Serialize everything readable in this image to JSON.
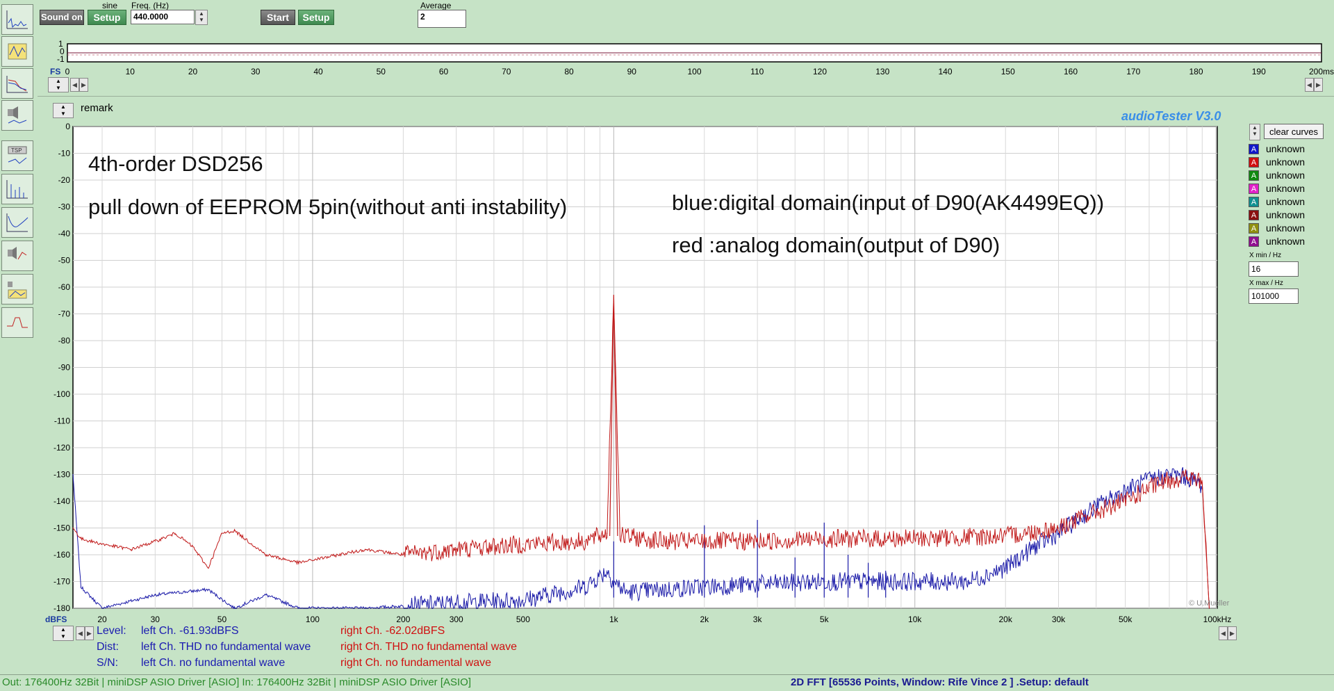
{
  "generator": {
    "waveform_label": "sine",
    "sound_button": "Sound on",
    "setup_button": "Setup",
    "freq_label": "Freq. (Hz)",
    "freq_value": "440.0000"
  },
  "analyzer": {
    "start_button": "Start",
    "setup_button": "Setup",
    "average_label": "Average",
    "average_value": "2"
  },
  "scope": {
    "y_ticks": [
      "1",
      "0",
      "-1"
    ],
    "fs_label": "FS",
    "x_ticks": [
      "0",
      "10",
      "20",
      "30",
      "40",
      "50",
      "60",
      "70",
      "80",
      "90",
      "100",
      "110",
      "120",
      "130",
      "140",
      "150",
      "160",
      "170",
      "180",
      "190",
      "200ms"
    ]
  },
  "remark_label": "remark",
  "brand_label": "audioTester  V3.0",
  "copyright": "© U.Mueller",
  "clear_curves_button": "clear curves",
  "legend": [
    {
      "letter": "A",
      "label": "unknown",
      "color": "#1018c8"
    },
    {
      "letter": "A",
      "label": "unknown",
      "color": "#d01010"
    },
    {
      "letter": "A",
      "label": "unknown",
      "color": "#108a10"
    },
    {
      "letter": "A",
      "label": "unknown",
      "color": "#e020c8"
    },
    {
      "letter": "A",
      "label": "unknown",
      "color": "#109090"
    },
    {
      "letter": "A",
      "label": "unknown",
      "color": "#8a1010"
    },
    {
      "letter": "A",
      "label": "unknown",
      "color": "#909010"
    },
    {
      "letter": "A",
      "label": "unknown",
      "color": "#901090"
    }
  ],
  "x_min_label": "X min / Hz",
  "x_min_value": "16",
  "x_max_label": "X max / Hz",
  "x_max_value": "101000",
  "annotations": {
    "line1": "4th-order DSD256",
    "line2": "pull down of EEPROM 5pin(without anti instability)",
    "line3": "blue:digital domain(input of D90(AK4499EQ))",
    "line4": "red :analog domain(output of D90)"
  },
  "results": {
    "level_label": "Level:",
    "level_left": "left Ch. -61.93dBFS",
    "level_right": "right Ch. -62.02dBFS",
    "dist_label": "Dist:",
    "dist_left": "left Ch. THD no fundamental wave",
    "dist_right": "right Ch. THD no fundamental wave",
    "sn_label": "S/N:",
    "sn_left": "left Ch.  no fundamental wave",
    "sn_right": "right Ch.  no fundamental wave"
  },
  "status": {
    "left_text": "Out: 176400Hz 32Bit  | miniDSP ASIO Driver [ASIO] In: 176400Hz 32Bit  | miniDSP ASIO Driver [ASIO]",
    "right_text": "2D FFT [65536 Points, Window: Rife Vince 2 ]  .Setup:  default"
  },
  "chart_data": {
    "type": "line",
    "title": "",
    "xlabel": "",
    "ylabel": "dBFS",
    "x_scale": "log",
    "xlim": [
      16,
      101000
    ],
    "ylim": [
      -180,
      0
    ],
    "y_ticks": [
      0,
      -10,
      -20,
      -30,
      -40,
      -50,
      -60,
      -70,
      -80,
      -90,
      -100,
      -110,
      -120,
      -130,
      -140,
      -150,
      -160,
      -170,
      -180
    ],
    "x_tick_labels": [
      {
        "v": 20,
        "t": "20"
      },
      {
        "v": 30,
        "t": "30"
      },
      {
        "v": 50,
        "t": "50"
      },
      {
        "v": 100,
        "t": "100"
      },
      {
        "v": 200,
        "t": "200"
      },
      {
        "v": 300,
        "t": "300"
      },
      {
        "v": 500,
        "t": "500"
      },
      {
        "v": 1000,
        "t": "1k"
      },
      {
        "v": 2000,
        "t": "2k"
      },
      {
        "v": 3000,
        "t": "3k"
      },
      {
        "v": 5000,
        "t": "5k"
      },
      {
        "v": 10000,
        "t": "10k"
      },
      {
        "v": 20000,
        "t": "20k"
      },
      {
        "v": 30000,
        "t": "30k"
      },
      {
        "v": 50000,
        "t": "50k"
      },
      {
        "v": 101000,
        "t": "100kHz"
      }
    ],
    "grid": true,
    "series": [
      {
        "color": "#1a1aa8",
        "points": [
          [
            16,
            -130
          ],
          [
            17,
            -172
          ],
          [
            20,
            -180
          ],
          [
            30,
            -175
          ],
          [
            45,
            -173
          ],
          [
            55,
            -180
          ],
          [
            70,
            -175
          ],
          [
            90,
            -180
          ],
          [
            150,
            -180
          ],
          [
            300,
            -178
          ],
          [
            500,
            -177
          ],
          [
            800,
            -172
          ],
          [
            950,
            -166
          ],
          [
            1000,
            -170
          ],
          [
            1100,
            -174
          ],
          [
            2000,
            -172
          ],
          [
            3000,
            -171
          ],
          [
            5000,
            -170
          ],
          [
            8000,
            -170
          ],
          [
            12000,
            -170
          ],
          [
            15000,
            -170
          ],
          [
            20000,
            -165
          ],
          [
            25000,
            -157
          ],
          [
            30000,
            -152
          ],
          [
            40000,
            -142
          ],
          [
            50000,
            -136
          ],
          [
            60000,
            -132
          ],
          [
            70000,
            -130
          ],
          [
            80000,
            -131
          ],
          [
            90000,
            -134
          ]
        ],
        "spikes": [
          [
            1000,
            -155
          ],
          [
            2000,
            -149
          ],
          [
            3000,
            -147
          ],
          [
            4000,
            -161
          ],
          [
            5000,
            -148
          ],
          [
            6000,
            -160
          ],
          [
            7000,
            -163
          ],
          [
            8000,
            -166
          ]
        ]
      },
      {
        "color": "#c01818",
        "points": [
          [
            16,
            -150
          ],
          [
            17,
            -154
          ],
          [
            20,
            -156
          ],
          [
            25,
            -158
          ],
          [
            30,
            -155
          ],
          [
            35,
            -152
          ],
          [
            40,
            -157
          ],
          [
            45,
            -165
          ],
          [
            50,
            -152
          ],
          [
            55,
            -151
          ],
          [
            70,
            -160
          ],
          [
            90,
            -163
          ],
          [
            150,
            -158
          ],
          [
            200,
            -160
          ],
          [
            300,
            -158
          ],
          [
            500,
            -156
          ],
          [
            800,
            -155
          ],
          [
            950,
            -152
          ],
          [
            1000,
            -63
          ],
          [
            1050,
            -153
          ],
          [
            1500,
            -155
          ],
          [
            2000,
            -155
          ],
          [
            3000,
            -155
          ],
          [
            5000,
            -154
          ],
          [
            10000,
            -154
          ],
          [
            20000,
            -153
          ],
          [
            30000,
            -150
          ],
          [
            40000,
            -144
          ],
          [
            50000,
            -140
          ],
          [
            60000,
            -135
          ],
          [
            70000,
            -132
          ],
          [
            80000,
            -131
          ],
          [
            90000,
            -133
          ],
          [
            95000,
            -180
          ]
        ]
      }
    ]
  }
}
